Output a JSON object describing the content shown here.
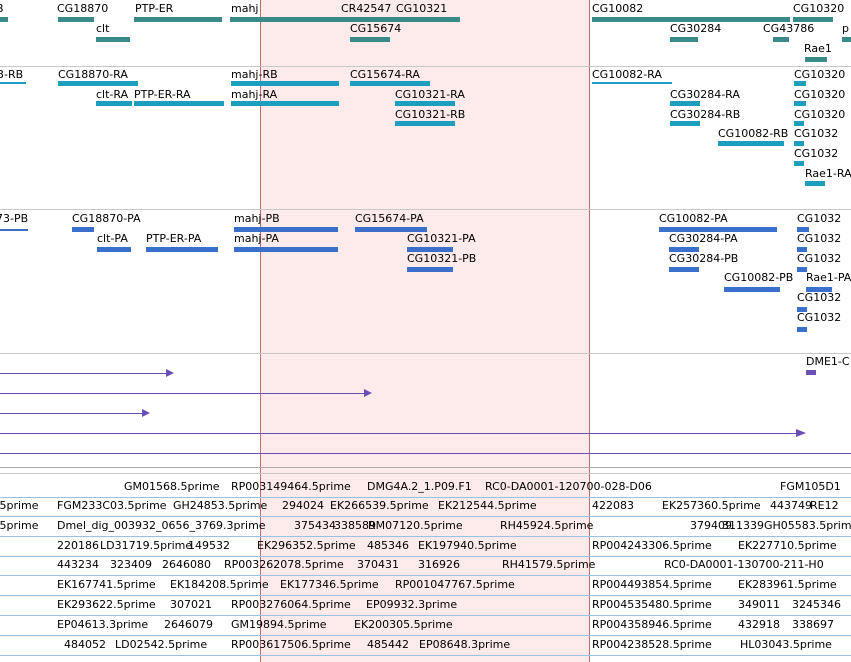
{
  "colors": {
    "gene": "#3a8a8a",
    "transcript": "#1c9fbf",
    "protein": "#3a6fcc",
    "cdna": "#6a4fb5",
    "est": "#7aa8d8",
    "selection": "#fad2d2"
  },
  "tracks": {
    "genes": [
      "clt",
      "PTP-ER",
      "mahj",
      "CR42547",
      "CG10321",
      "CG18870",
      "CG15674",
      "CG10082",
      "CG30284",
      "CG43786",
      "Rae1",
      "CG10320",
      "p"
    ],
    "transcripts": [
      "3-RB",
      "CG18870-RA",
      "clt-RA",
      "PTP-ER-RA",
      "mahj-RB",
      "mahj-RA",
      "CG15674-RA",
      "CG10321-RA",
      "CG10321-RB",
      "CG10082-RA",
      "CG30284-RA",
      "CG30284-RB",
      "CG10082-RB",
      "CG1032",
      "CG1032",
      "CG1032",
      "CG1032",
      "CG1032",
      "CG1032",
      "Rae1-RA"
    ],
    "proteins": [
      "73-PB",
      "CG18870-PA",
      "clt-PA",
      "PTP-ER-PA",
      "mahj-PB",
      "mahj-PA",
      "CG15674-PA",
      "CG10321-PA",
      "CG10321-PB",
      "CG10082-PA",
      "CG30284-PA",
      "CG30284-PB",
      "CG10082-PB",
      "Rae1-PA",
      "CG1032",
      "CG1032",
      "CG1032",
      "CG1032",
      "CG1032"
    ],
    "cdna": [
      "DME1-C"
    ],
    "est_rows": [
      [
        "GM01568.5prime",
        "RP003149464.5prime",
        "DMG4A.2_1.P09.F1",
        "RC0-DA0001-120700-028-D06",
        "FGM105D1"
      ],
      [
        ".5prime",
        "FGM233C03.5prime",
        "GH24853.5prime",
        "294024",
        "EK266539.5prime",
        "EK212544.5prime",
        "422083",
        "EK257360.5prime",
        "443749",
        "RE12"
      ],
      [
        ".5prime",
        "Dmel_dig_003932_0656_3769.3prime",
        "375434",
        "338589",
        "RM07120.5prime",
        "RH45924.5prime",
        "379409",
        "311339",
        "GH05583.5prime"
      ],
      [
        "220186",
        "LD31719.5prime",
        "149532",
        "EK296352.5prime",
        "485346",
        "EK197940.5prime",
        "RP004243306.5prime",
        "EK227710.5prime"
      ],
      [
        "443234",
        "323409",
        "2646080",
        "RP003262078.5prime",
        "370431",
        "316926",
        "RH41579.5prime",
        "RC0-DA0001-130700-211-H0"
      ],
      [
        "EK167741.5prime",
        "EK184208.5prime",
        "EK177346.5prime",
        "RP001047767.5prime",
        "RP004493854.5prime",
        "EK283961.5prime"
      ],
      [
        "EK293622.5prime",
        "307021",
        "RP003276064.5prime",
        "EP09932.3prime",
        "RP004535480.5prime",
        "349011",
        "3245346"
      ],
      [
        "EP04613.3prime",
        "2646079",
        "GM19894.5prime",
        "EK200305.5prime",
        "RP004358946.5prime",
        "432918",
        "338697"
      ],
      [
        "484052",
        "LD02542.5prime",
        "RP003617506.5prime",
        "485442",
        "EP08648.3prime",
        "RP004238528.5prime",
        "HL03043.5prime"
      ]
    ]
  }
}
